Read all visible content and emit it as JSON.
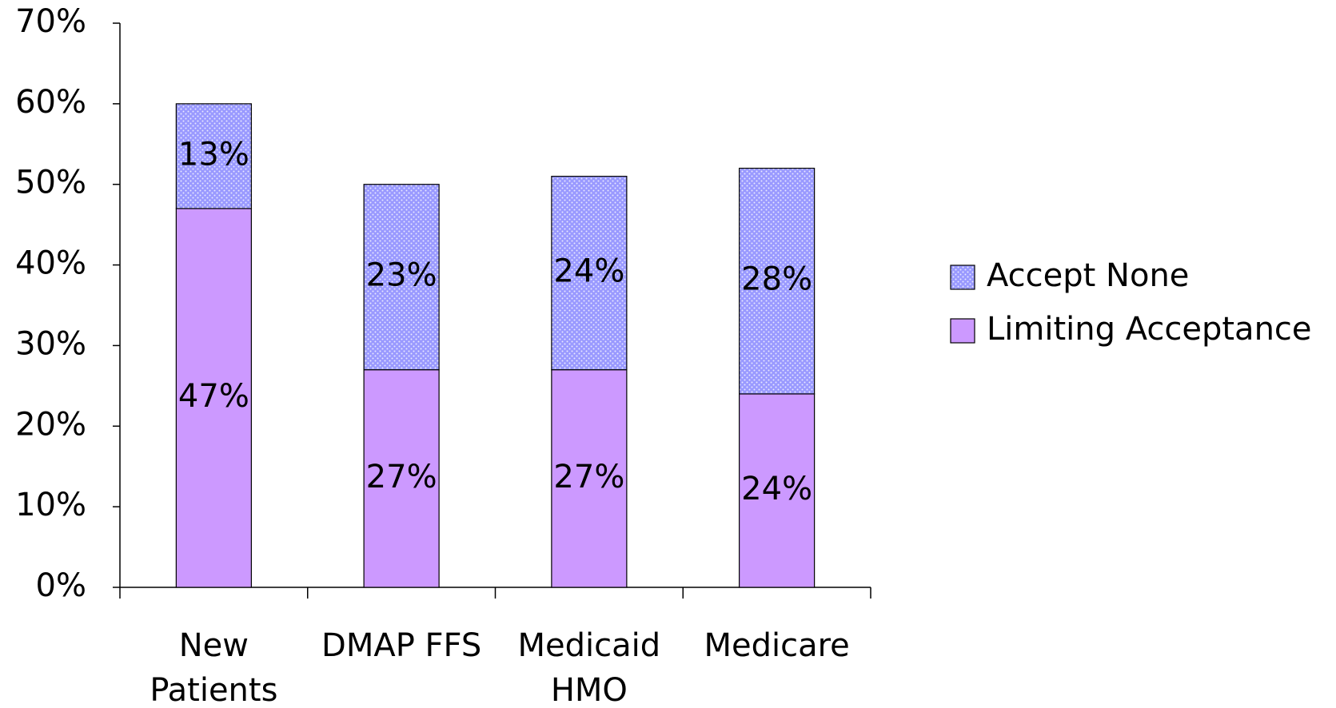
{
  "chart_data": {
    "type": "stacked-bar",
    "categories": [
      "New Patients",
      "DMAP FFS",
      "Medicaid HMO",
      "Medicare"
    ],
    "series": [
      {
        "name": "Limiting Acceptance",
        "color": "#cc99ff",
        "values": [
          47,
          27,
          27,
          24
        ],
        "value_labels": [
          "47%",
          "27%",
          "27%",
          "24%"
        ]
      },
      {
        "name": "Accept None",
        "color": "#9999ff",
        "values": [
          13,
          23,
          24,
          28
        ],
        "value_labels": [
          "13%",
          "23%",
          "24%",
          "28%"
        ]
      }
    ],
    "ylim": [
      0,
      70
    ],
    "yticks": [
      {
        "value": 0,
        "label": "0%"
      },
      {
        "value": 10,
        "label": "10%"
      },
      {
        "value": 20,
        "label": "20%"
      },
      {
        "value": 30,
        "label": "30%"
      },
      {
        "value": 40,
        "label": "40%"
      },
      {
        "value": 50,
        "label": "50%"
      },
      {
        "value": 60,
        "label": "60%"
      },
      {
        "value": 70,
        "label": "70%"
      }
    ],
    "legend": "right",
    "grid": false
  }
}
